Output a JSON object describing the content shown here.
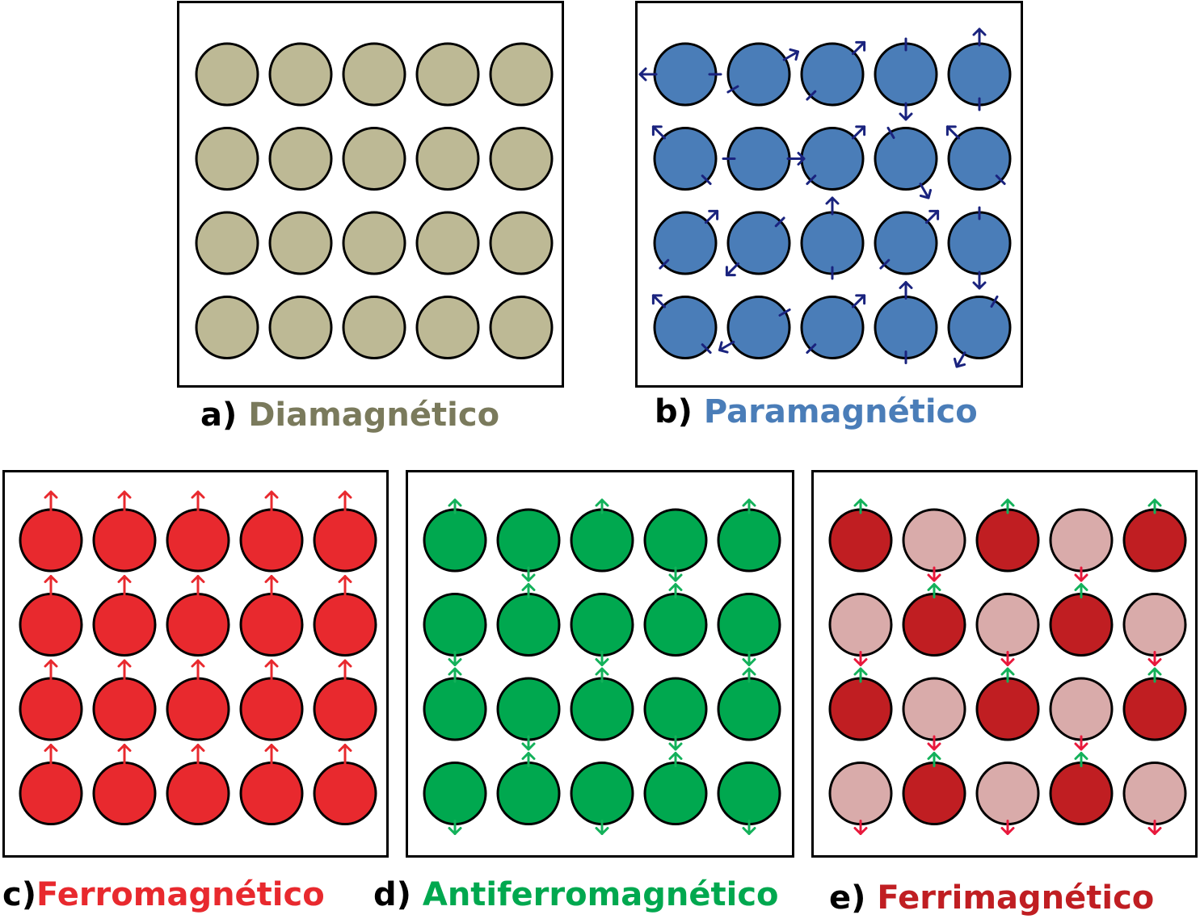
{
  "colors": {
    "dia": "#BDB995",
    "dia_text": "#7A7A5C",
    "para": "#4A7DB8",
    "para_arrow": "#1A237E",
    "ferro": "#E8292E",
    "antiferro": "#00A84F",
    "antiferro_arrow": "#13B15A",
    "ferri_dark": "#C01E22",
    "ferri_light": "#D9ABAA",
    "ferri_up_arrow": "#13B15A",
    "ferri_down_arrow": "#E8193C"
  },
  "panels": [
    {
      "id": "a",
      "letter": "a)",
      "label": "Diamagnético",
      "label_color": "#7A7A5C",
      "kind": "dia"
    },
    {
      "id": "b",
      "letter": "b)",
      "label": "Paramagnético",
      "label_color": "#4A7DB8",
      "kind": "para",
      "moment_angles_deg": [
        [
          180,
          30,
          45,
          270,
          90
        ],
        [
          135,
          0,
          45,
          300,
          135
        ],
        [
          45,
          225,
          90,
          45,
          270
        ],
        [
          135,
          210,
          45,
          90,
          240
        ]
      ]
    },
    {
      "id": "c",
      "letter": "c)",
      "label": "Ferromagnético",
      "label_color": "#E8292E",
      "kind": "ferro",
      "moment_angles_deg": [
        [
          90,
          90,
          90,
          90,
          90
        ],
        [
          90,
          90,
          90,
          90,
          90
        ],
        [
          90,
          90,
          90,
          90,
          90
        ],
        [
          90,
          90,
          90,
          90,
          90
        ]
      ]
    },
    {
      "id": "d",
      "letter": "d)",
      "label": "Antiferromagnético",
      "label_color": "#00A84F",
      "kind": "antiferro",
      "moment_angles_deg": [
        [
          90,
          270,
          90,
          270,
          90
        ],
        [
          270,
          90,
          270,
          90,
          270
        ],
        [
          90,
          270,
          90,
          270,
          90
        ],
        [
          270,
          90,
          270,
          90,
          270
        ]
      ]
    },
    {
      "id": "e",
      "letter": "e)",
      "label": "Ferrimagnético",
      "label_color": "#C01E22",
      "kind": "ferri",
      "moment_angles_deg": [
        [
          90,
          270,
          90,
          270,
          90
        ],
        [
          270,
          90,
          270,
          90,
          270
        ],
        [
          90,
          270,
          90,
          270,
          90
        ],
        [
          270,
          90,
          270,
          90,
          270
        ]
      ]
    }
  ]
}
